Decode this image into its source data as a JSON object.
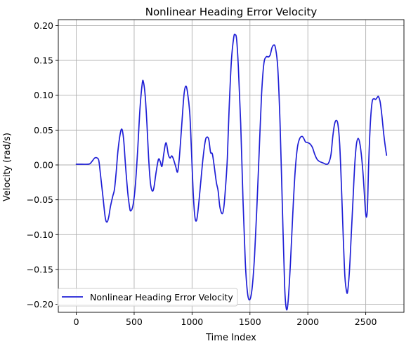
{
  "chart_data": {
    "type": "line",
    "title": "Nonlinear Heading Error Velocity",
    "xlabel": "Time Index",
    "ylabel": "Velocity (rad/s)",
    "xlim": [
      -155,
      2830
    ],
    "ylim": [
      -0.2115,
      0.2085
    ],
    "xticks": [
      0,
      500,
      1000,
      1500,
      2000,
      2500
    ],
    "xtick_labels": [
      "0",
      "500",
      "1000",
      "1500",
      "2000",
      "2500"
    ],
    "yticks": [
      -0.2,
      -0.15,
      -0.1,
      -0.05,
      0.0,
      0.05,
      0.1,
      0.15,
      0.2
    ],
    "ytick_labels": [
      "−0.20",
      "−0.15",
      "−0.10",
      "−0.05",
      "0.00",
      "0.05",
      "0.10",
      "0.15",
      "0.20"
    ],
    "grid": true,
    "legend_position": "lower-left",
    "series": [
      {
        "name": "Nonlinear Heading Error Velocity",
        "color": "#1f1fd6",
        "points": [
          [
            0,
            0.001
          ],
          [
            50,
            0.001
          ],
          [
            100,
            0.001
          ],
          [
            120,
            0.002
          ],
          [
            140,
            0.006
          ],
          [
            160,
            0.01
          ],
          [
            180,
            0.01
          ],
          [
            195,
            0.006
          ],
          [
            210,
            -0.015
          ],
          [
            230,
            -0.045
          ],
          [
            250,
            -0.075
          ],
          [
            265,
            -0.082
          ],
          [
            280,
            -0.075
          ],
          [
            295,
            -0.06
          ],
          [
            315,
            -0.045
          ],
          [
            330,
            -0.035
          ],
          [
            345,
            -0.01
          ],
          [
            360,
            0.02
          ],
          [
            380,
            0.045
          ],
          [
            395,
            0.051
          ],
          [
            410,
            0.035
          ],
          [
            425,
            0.0
          ],
          [
            445,
            -0.04
          ],
          [
            460,
            -0.06
          ],
          [
            470,
            -0.066
          ],
          [
            490,
            -0.058
          ],
          [
            510,
            -0.03
          ],
          [
            530,
            0.02
          ],
          [
            550,
            0.08
          ],
          [
            570,
            0.117
          ],
          [
            580,
            0.119
          ],
          [
            595,
            0.1
          ],
          [
            610,
            0.06
          ],
          [
            625,
            0.01
          ],
          [
            640,
            -0.025
          ],
          [
            655,
            -0.037
          ],
          [
            670,
            -0.033
          ],
          [
            690,
            -0.01
          ],
          [
            710,
            0.008
          ],
          [
            725,
            0.005
          ],
          [
            740,
            -0.002
          ],
          [
            755,
            0.015
          ],
          [
            770,
            0.03
          ],
          [
            780,
            0.03
          ],
          [
            795,
            0.015
          ],
          [
            810,
            0.01
          ],
          [
            825,
            0.013
          ],
          [
            840,
            0.008
          ],
          [
            860,
            -0.003
          ],
          [
            875,
            -0.01
          ],
          [
            890,
            0.01
          ],
          [
            910,
            0.055
          ],
          [
            930,
            0.1
          ],
          [
            945,
            0.113
          ],
          [
            960,
            0.105
          ],
          [
            980,
            0.075
          ],
          [
            995,
            0.02
          ],
          [
            1010,
            -0.04
          ],
          [
            1025,
            -0.075
          ],
          [
            1040,
            -0.079
          ],
          [
            1055,
            -0.06
          ],
          [
            1075,
            -0.025
          ],
          [
            1095,
            0.01
          ],
          [
            1115,
            0.035
          ],
          [
            1130,
            0.04
          ],
          [
            1145,
            0.036
          ],
          [
            1160,
            0.018
          ],
          [
            1175,
            0.016
          ],
          [
            1190,
            0.0
          ],
          [
            1210,
            -0.025
          ],
          [
            1225,
            -0.037
          ],
          [
            1240,
            -0.06
          ],
          [
            1260,
            -0.07
          ],
          [
            1275,
            -0.06
          ],
          [
            1290,
            -0.03
          ],
          [
            1305,
            0.01
          ],
          [
            1320,
            0.08
          ],
          [
            1340,
            0.15
          ],
          [
            1360,
            0.183
          ],
          [
            1372,
            0.187
          ],
          [
            1385,
            0.18
          ],
          [
            1400,
            0.14
          ],
          [
            1420,
            0.06
          ],
          [
            1440,
            -0.05
          ],
          [
            1460,
            -0.14
          ],
          [
            1480,
            -0.185
          ],
          [
            1500,
            -0.193
          ],
          [
            1520,
            -0.175
          ],
          [
            1540,
            -0.13
          ],
          [
            1560,
            -0.06
          ],
          [
            1580,
            0.02
          ],
          [
            1600,
            0.1
          ],
          [
            1620,
            0.145
          ],
          [
            1640,
            0.155
          ],
          [
            1660,
            0.155
          ],
          [
            1675,
            0.158
          ],
          [
            1690,
            0.168
          ],
          [
            1705,
            0.172
          ],
          [
            1720,
            0.168
          ],
          [
            1740,
            0.14
          ],
          [
            1760,
            0.06
          ],
          [
            1780,
            -0.06
          ],
          [
            1800,
            -0.175
          ],
          [
            1815,
            -0.207
          ],
          [
            1830,
            -0.195
          ],
          [
            1850,
            -0.14
          ],
          [
            1870,
            -0.07
          ],
          [
            1890,
            -0.01
          ],
          [
            1910,
            0.025
          ],
          [
            1930,
            0.038
          ],
          [
            1950,
            0.041
          ],
          [
            1965,
            0.038
          ],
          [
            1980,
            0.033
          ],
          [
            2000,
            0.032
          ],
          [
            2020,
            0.03
          ],
          [
            2040,
            0.025
          ],
          [
            2060,
            0.015
          ],
          [
            2080,
            0.008
          ],
          [
            2100,
            0.005
          ],
          [
            2130,
            0.003
          ],
          [
            2160,
            0.001
          ],
          [
            2180,
            0.003
          ],
          [
            2200,
            0.015
          ],
          [
            2215,
            0.04
          ],
          [
            2230,
            0.058
          ],
          [
            2245,
            0.064
          ],
          [
            2260,
            0.058
          ],
          [
            2275,
            0.03
          ],
          [
            2290,
            -0.03
          ],
          [
            2305,
            -0.1
          ],
          [
            2320,
            -0.16
          ],
          [
            2335,
            -0.182
          ],
          [
            2345,
            -0.18
          ],
          [
            2360,
            -0.15
          ],
          [
            2375,
            -0.1
          ],
          [
            2390,
            -0.05
          ],
          [
            2405,
            0.0
          ],
          [
            2420,
            0.03
          ],
          [
            2435,
            0.038
          ],
          [
            2450,
            0.03
          ],
          [
            2465,
            0.01
          ],
          [
            2480,
            -0.02
          ],
          [
            2495,
            -0.06
          ],
          [
            2505,
            -0.075
          ],
          [
            2515,
            -0.06
          ],
          [
            2525,
            0.0
          ],
          [
            2540,
            0.06
          ],
          [
            2555,
            0.09
          ],
          [
            2570,
            0.095
          ],
          [
            2585,
            0.094
          ],
          [
            2600,
            0.097
          ],
          [
            2610,
            0.098
          ],
          [
            2625,
            0.09
          ],
          [
            2640,
            0.07
          ],
          [
            2655,
            0.045
          ],
          [
            2670,
            0.025
          ],
          [
            2680,
            0.014
          ]
        ]
      }
    ]
  }
}
